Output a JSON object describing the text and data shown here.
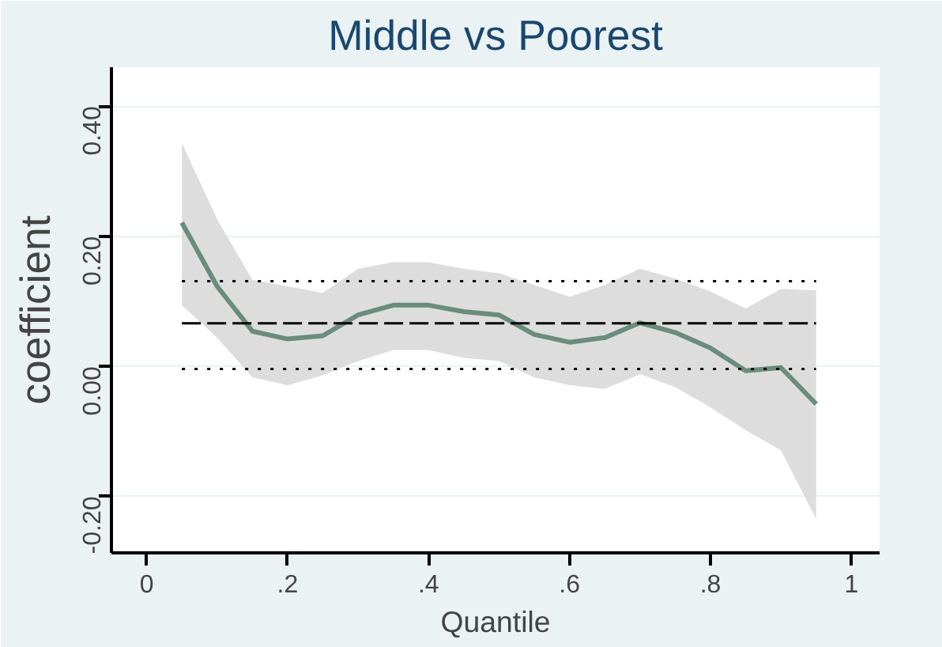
{
  "chart_data": {
    "type": "line",
    "title": "Middle vs Poorest",
    "xlabel": "Quantile",
    "ylabel": "coefficient",
    "x": [
      0.05,
      0.1,
      0.15,
      0.2,
      0.25,
      0.3,
      0.35,
      0.4,
      0.45,
      0.5,
      0.55,
      0.6,
      0.65,
      0.7,
      0.75,
      0.8,
      0.85,
      0.9,
      0.95
    ],
    "series": [
      {
        "color": "#6a8c7c",
        "line_style": "solid",
        "values": [
          0.221,
          0.123,
          0.054,
          0.042,
          0.047,
          0.079,
          0.094,
          0.094,
          0.084,
          0.079,
          0.049,
          0.037,
          0.044,
          0.067,
          0.052,
          0.028,
          -0.007,
          -0.002,
          -0.058
        ],
        "lower": [
          0.094,
          0.044,
          -0.017,
          -0.029,
          -0.014,
          0.008,
          0.025,
          0.025,
          0.013,
          0.008,
          -0.017,
          -0.029,
          -0.035,
          -0.012,
          -0.032,
          -0.063,
          -0.098,
          -0.129,
          -0.235
        ],
        "upper": [
          0.343,
          0.226,
          0.133,
          0.123,
          0.113,
          0.15,
          0.16,
          0.16,
          0.15,
          0.143,
          0.125,
          0.107,
          0.125,
          0.15,
          0.135,
          0.115,
          0.089,
          0.119,
          0.117
        ]
      },
      {
        "color": "#000000",
        "line_style": "dashed",
        "values": [
          0.066,
          0.066,
          0.066,
          0.066,
          0.066,
          0.066,
          0.066,
          0.066,
          0.066,
          0.066,
          0.066,
          0.066,
          0.066,
          0.066,
          0.066,
          0.066,
          0.066,
          0.066,
          0.066
        ]
      },
      {
        "color": "#000000",
        "line_style": "dotted",
        "values": [
          0.131,
          0.131,
          0.131,
          0.131,
          0.131,
          0.131,
          0.131,
          0.131,
          0.131,
          0.131,
          0.131,
          0.131,
          0.131,
          0.131,
          0.131,
          0.131,
          0.131,
          0.131,
          0.131
        ]
      },
      {
        "color": "#000000",
        "line_style": "dotted",
        "values": [
          -0.004,
          -0.004,
          -0.004,
          -0.004,
          -0.004,
          -0.004,
          -0.004,
          -0.004,
          -0.004,
          -0.004,
          -0.004,
          -0.004,
          -0.004,
          -0.004,
          -0.004,
          -0.004,
          -0.004,
          -0.004,
          -0.004
        ]
      }
    ],
    "xlim": [
      -0.05,
      1.04
    ],
    "ylim": [
      -0.287,
      0.46
    ],
    "xticks": [
      0,
      {
        "value": 0.2,
        "label": ".2"
      },
      {
        "value": 0.4,
        "label": ".4"
      },
      {
        "value": 0.6,
        "label": ".6"
      },
      {
        "value": 0.8,
        "label": ".8"
      },
      1
    ],
    "yticks": [
      {
        "value": -0.2,
        "label": "-0.20"
      },
      {
        "value": 0,
        "label": "0.00"
      },
      {
        "value": 0.2,
        "label": "0.20"
      },
      {
        "value": 0.4,
        "label": "0.40"
      }
    ],
    "grid": "y",
    "marker": "none"
  }
}
